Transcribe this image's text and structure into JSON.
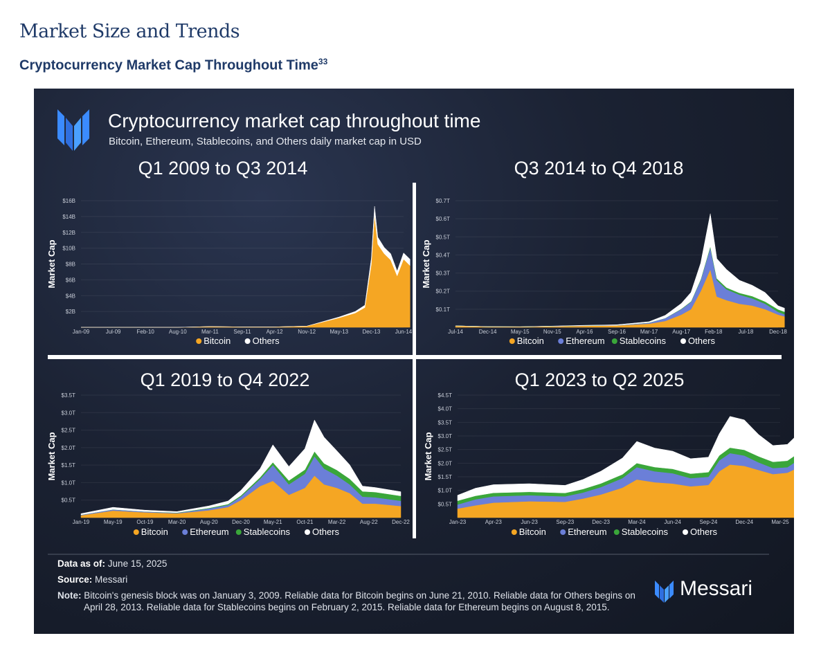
{
  "page": {
    "title": "Market Size and Trends",
    "subtitle": "Cryptocurrency Market Cap Throughout Time",
    "footnote_ref": "33"
  },
  "infographic": {
    "title": "Cryptocurrency market cap throughout time",
    "subtitle": "Bitcoin, Ethereum, Stablecoins, and Others daily market cap in USD",
    "data_as_of_label": "Data as of:",
    "data_as_of": "June 15, 2025",
    "source_label": "Source:",
    "source": "Messari",
    "note_label": "Note:",
    "note": "Bitcoin's genesis block was on January 3, 2009. Reliable data for Bitcoin begins on June 21, 2010. Reliable data for Others begins on April 28, 2013. Reliable data for Stablecoins begins on February 2, 2015. Reliable data for Ethereum begins on August 8, 2015.",
    "brand": "Messari"
  },
  "colors": {
    "bitcoin": "#f5a623",
    "ethereum": "#6b7fd8",
    "stablecoins": "#3aa63a",
    "others": "#ffffff"
  },
  "chart_data": [
    {
      "type": "area",
      "stacked": true,
      "title": "Q1 2009 to Q3 2014",
      "ylabel": "Market Cap",
      "y_unit": "B",
      "ylim": [
        0,
        16
      ],
      "yticks": [
        "$2B",
        "$4B",
        "$6B",
        "$8B",
        "$10B",
        "$12B",
        "$14B",
        "$16B"
      ],
      "xticks": [
        "Jan-09",
        "Jul-09",
        "Feb-10",
        "Aug-10",
        "Mar-11",
        "Sep-11",
        "Apr-12",
        "Nov-12",
        "May-13",
        "Dec-13",
        "Jun-14"
      ],
      "legend": [
        "Bitcoin",
        "Others"
      ],
      "x": [
        0,
        1,
        2,
        3,
        4,
        5,
        6,
        7,
        8,
        8.5,
        8.8,
        9,
        9.1,
        9.2,
        9.4,
        9.6,
        9.8,
        10,
        10.2
      ],
      "series": [
        {
          "name": "Bitcoin",
          "values": [
            0,
            0,
            0,
            0,
            0.1,
            0.05,
            0.05,
            0.15,
            1.2,
            1.8,
            2.5,
            8,
            14.2,
            10.5,
            9.3,
            8.5,
            6.5,
            8.6,
            7.8
          ]
        },
        {
          "name": "Others",
          "values": [
            0,
            0,
            0,
            0,
            0,
            0,
            0,
            0,
            0.1,
            0.2,
            0.3,
            0.7,
            1.1,
            0.9,
            0.8,
            0.8,
            0.6,
            0.8,
            0.8
          ]
        }
      ]
    },
    {
      "type": "area",
      "stacked": true,
      "title": "Q3 2014 to Q4 2018",
      "ylabel": "Market Cap",
      "y_unit": "T",
      "ylim": [
        0,
        0.7
      ],
      "yticks": [
        "$0.1T",
        "$0.2T",
        "$0.3T",
        "$0.4T",
        "$0.5T",
        "$0.6T",
        "$0.7T"
      ],
      "xticks": [
        "Jul-14",
        "Dec-14",
        "May-15",
        "Nov-15",
        "Apr-16",
        "Sep-16",
        "Mar-17",
        "Aug-17",
        "Feb-18",
        "Jul-18",
        "Dec-18"
      ],
      "legend": [
        "Bitcoin",
        "Ethereum",
        "Stablecoins",
        "Others"
      ],
      "x": [
        0,
        1,
        2,
        3,
        4,
        5,
        6,
        6.5,
        7,
        7.3,
        7.6,
        7.9,
        8.1,
        8.4,
        8.8,
        9.2,
        9.6,
        10,
        10.2
      ],
      "series": [
        {
          "name": "Bitcoin",
          "values": [
            0.008,
            0.004,
            0.003,
            0.005,
            0.008,
            0.01,
            0.02,
            0.035,
            0.07,
            0.1,
            0.2,
            0.32,
            0.17,
            0.15,
            0.13,
            0.12,
            0.1,
            0.07,
            0.06
          ]
        },
        {
          "name": "Ethereum",
          "values": [
            0,
            0,
            0,
            0.001,
            0.001,
            0.001,
            0.005,
            0.015,
            0.03,
            0.04,
            0.06,
            0.12,
            0.09,
            0.06,
            0.05,
            0.04,
            0.03,
            0.015,
            0.012
          ]
        },
        {
          "name": "Stablecoins",
          "values": [
            0,
            0,
            0,
            0,
            0,
            0,
            0.001,
            0.001,
            0.002,
            0.003,
            0.005,
            0.008,
            0.01,
            0.01,
            0.01,
            0.012,
            0.012,
            0.014,
            0.014
          ]
        },
        {
          "name": "Others",
          "values": [
            0,
            0,
            0,
            0.001,
            0.002,
            0.003,
            0.005,
            0.015,
            0.03,
            0.05,
            0.09,
            0.18,
            0.11,
            0.1,
            0.07,
            0.06,
            0.05,
            0.02,
            0.02
          ]
        }
      ]
    },
    {
      "type": "area",
      "stacked": true,
      "title": "Q1 2019 to Q4 2022",
      "ylabel": "Market Cap",
      "y_unit": "T",
      "ylim": [
        0,
        3.5
      ],
      "yticks": [
        "$0.5T",
        "$1.0T",
        "$1.5T",
        "$2.0T",
        "$2.5T",
        "$3.0T",
        "$3.5T"
      ],
      "xticks": [
        "Jan-19",
        "May-19",
        "Oct-19",
        "Mar-20",
        "Aug-20",
        "Dec-20",
        "May-21",
        "Oct-21",
        "Mar-22",
        "Aug-22",
        "Dec-22"
      ],
      "legend": [
        "Bitcoin",
        "Ethereum",
        "Stablecoins",
        "Others"
      ],
      "x": [
        0,
        1,
        2,
        3,
        4,
        4.6,
        5,
        5.6,
        6,
        6.5,
        7,
        7.3,
        7.6,
        8,
        8.4,
        8.8,
        9.2,
        10
      ],
      "series": [
        {
          "name": "Bitcoin",
          "values": [
            0.065,
            0.2,
            0.15,
            0.12,
            0.21,
            0.3,
            0.5,
            0.9,
            1.05,
            0.65,
            0.85,
            1.2,
            0.95,
            0.85,
            0.7,
            0.4,
            0.4,
            0.33
          ]
        },
        {
          "name": "Ethereum",
          "values": [
            0.015,
            0.03,
            0.02,
            0.015,
            0.05,
            0.06,
            0.1,
            0.2,
            0.45,
            0.3,
            0.4,
            0.55,
            0.45,
            0.35,
            0.25,
            0.2,
            0.18,
            0.15
          ]
        },
        {
          "name": "Stablecoins",
          "values": [
            0.002,
            0.004,
            0.004,
            0.008,
            0.015,
            0.025,
            0.03,
            0.05,
            0.08,
            0.11,
            0.12,
            0.14,
            0.15,
            0.16,
            0.16,
            0.15,
            0.15,
            0.14
          ]
        },
        {
          "name": "Others",
          "values": [
            0.03,
            0.06,
            0.04,
            0.03,
            0.06,
            0.09,
            0.15,
            0.25,
            0.5,
            0.4,
            0.6,
            0.9,
            0.75,
            0.55,
            0.4,
            0.15,
            0.13,
            0.12
          ]
        }
      ]
    },
    {
      "type": "area",
      "stacked": true,
      "title": "Q1 2023 to Q2 2025",
      "ylabel": "Market Cap",
      "y_unit": "T",
      "ylim": [
        0,
        4.5
      ],
      "yticks": [
        "$0.5T",
        "$1.0T",
        "$1.5T",
        "$2.0T",
        "$2.5T",
        "$3.0T",
        "$3.5T",
        "$4.0T",
        "$4.5T"
      ],
      "xticks": [
        "Jan-23",
        "Apr-23",
        "Jun-23",
        "Sep-23",
        "Dec-23",
        "Mar-24",
        "Jun-24",
        "Sep-24",
        "Dec-24",
        "Mar-25"
      ],
      "legend": [
        "Bitcoin",
        "Ethereum",
        "Stablecoins",
        "Others"
      ],
      "x": [
        0,
        0.5,
        1,
        2,
        3,
        3.5,
        4,
        4.6,
        5,
        5.5,
        6,
        6.5,
        7,
        7.3,
        7.6,
        8,
        8.4,
        8.8,
        9.2,
        9.6,
        10.2
      ],
      "series": [
        {
          "name": "Bitcoin",
          "values": [
            0.33,
            0.45,
            0.55,
            0.6,
            0.58,
            0.7,
            0.85,
            1.1,
            1.4,
            1.3,
            1.25,
            1.15,
            1.2,
            1.7,
            1.95,
            1.9,
            1.75,
            1.6,
            1.65,
            1.9,
            2.1
          ]
        },
        {
          "name": "Ethereum",
          "values": [
            0.15,
            0.22,
            0.23,
            0.22,
            0.2,
            0.22,
            0.27,
            0.35,
            0.45,
            0.4,
            0.38,
            0.3,
            0.3,
            0.4,
            0.42,
            0.38,
            0.28,
            0.22,
            0.2,
            0.3,
            0.3
          ]
        },
        {
          "name": "Stablecoins",
          "values": [
            0.14,
            0.13,
            0.13,
            0.125,
            0.125,
            0.13,
            0.135,
            0.14,
            0.15,
            0.155,
            0.16,
            0.165,
            0.17,
            0.18,
            0.2,
            0.21,
            0.22,
            0.23,
            0.24,
            0.25,
            0.25
          ]
        },
        {
          "name": "Others",
          "values": [
            0.2,
            0.28,
            0.3,
            0.3,
            0.28,
            0.35,
            0.45,
            0.6,
            0.8,
            0.7,
            0.65,
            0.55,
            0.55,
            0.8,
            1.15,
            1.1,
            0.8,
            0.6,
            0.6,
            0.75,
            0.85
          ]
        }
      ]
    }
  ]
}
